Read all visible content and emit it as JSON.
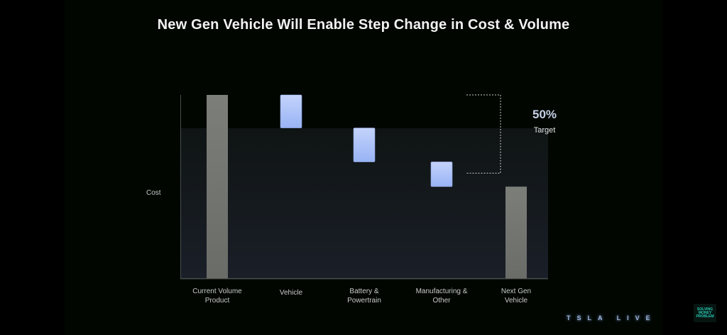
{
  "slide": {
    "title": "New Gen Vehicle Will Enable Step Change in Cost & Volume"
  },
  "chart_data": {
    "type": "bar",
    "subtype": "waterfall",
    "title": "New Gen Vehicle Will Enable Step Change in Cost & Volume",
    "ylabel": "Cost",
    "xlabel": "",
    "ylim": [
      0,
      100
    ],
    "grid": false,
    "categories": [
      [
        "Current Volume",
        "Product"
      ],
      [
        "Vehicle"
      ],
      [
        "Battery &",
        "Powertrain"
      ],
      [
        "Manufacturing &",
        "Other"
      ],
      [
        "Next Gen",
        "Vehicle"
      ]
    ],
    "bars": [
      {
        "name": "Current Volume Product",
        "kind": "total",
        "value": 100
      },
      {
        "name": "Vehicle",
        "kind": "decrease",
        "value": -18
      },
      {
        "name": "Battery & Powertrain",
        "kind": "decrease",
        "value": -18.5
      },
      {
        "name": "Manufacturing & Other",
        "kind": "decrease",
        "value": -13.5
      },
      {
        "name": "Next Gen Vehicle",
        "kind": "total",
        "value": 50
      }
    ],
    "annotation": {
      "value": "50%",
      "label": "Target",
      "spans": "Current Volume Product top to Manufacturing & Other bottom"
    },
    "colors": {
      "total": "#7a7c78",
      "decrease_top": "#c4d3fb",
      "decrease_bottom": "#98b3f5",
      "bracket": "#cccccc"
    }
  },
  "watermark": {
    "text": "TSLA LIVE"
  },
  "badge": {
    "lines": [
      "SOLVING",
      "MONEY",
      "PROBLEM"
    ]
  }
}
